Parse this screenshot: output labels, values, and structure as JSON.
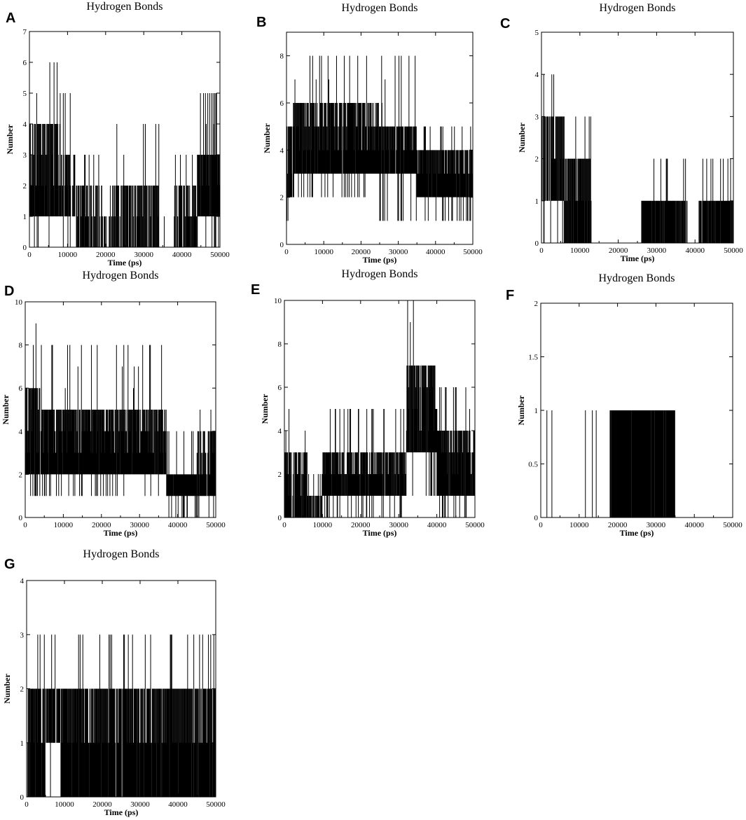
{
  "figure": {
    "panels": [
      "A",
      "B",
      "C",
      "D",
      "E",
      "F",
      "G"
    ]
  },
  "chart_data": [
    {
      "panel": "A",
      "type": "line",
      "title": "Hydrogen Bonds",
      "xlabel": "Time (ps)",
      "ylabel": "Number",
      "xlim": [
        0,
        50000
      ],
      "ylim": [
        0,
        7
      ],
      "xticks": [
        0,
        10000,
        20000,
        30000,
        40000,
        50000
      ],
      "yticks": [
        0,
        1,
        2,
        3,
        4,
        5,
        6,
        7
      ],
      "grid": false,
      "legend": "none",
      "segments": [
        {
          "x0": 0,
          "x1": 2000,
          "lo": 1,
          "hi": 4,
          "dlo": 0,
          "dhi": 5,
          "density": 0.95
        },
        {
          "x0": 2000,
          "x1": 8000,
          "lo": 1,
          "hi": 4,
          "dlo": 0,
          "dhi": 6,
          "density": 0.9
        },
        {
          "x0": 8000,
          "x1": 12000,
          "lo": 1,
          "hi": 3,
          "dlo": 0,
          "dhi": 5,
          "density": 0.85
        },
        {
          "x0": 12000,
          "x1": 19000,
          "lo": 0,
          "hi": 2,
          "dlo": 0,
          "dhi": 3,
          "density": 0.75
        },
        {
          "x0": 19000,
          "x1": 22000,
          "lo": 0,
          "hi": 1,
          "dlo": 0,
          "dhi": 2,
          "density": 0.5
        },
        {
          "x0": 22000,
          "x1": 34000,
          "lo": 0,
          "hi": 2,
          "dlo": 0,
          "dhi": 4,
          "density": 0.7
        },
        {
          "x0": 34000,
          "x1": 38000,
          "lo": 0,
          "hi": 0,
          "dlo": 0,
          "dhi": 2,
          "density": 0.15
        },
        {
          "x0": 38000,
          "x1": 44000,
          "lo": 0,
          "hi": 2,
          "dlo": 0,
          "dhi": 3,
          "density": 0.7
        },
        {
          "x0": 44000,
          "x1": 50000,
          "lo": 1,
          "hi": 3,
          "dlo": 0,
          "dhi": 5,
          "density": 0.85
        }
      ]
    },
    {
      "panel": "B",
      "type": "line",
      "title": "Hydrogen Bonds",
      "xlabel": "Time (ps)",
      "ylabel": "Number",
      "xlim": [
        0,
        50000
      ],
      "ylim": [
        0,
        9
      ],
      "xticks": [
        0,
        10000,
        20000,
        30000,
        40000,
        50000
      ],
      "yticks": [
        0,
        2,
        4,
        6,
        8
      ],
      "grid": false,
      "legend": "none",
      "segments": [
        {
          "x0": 0,
          "x1": 2000,
          "lo": 2,
          "hi": 5,
          "dlo": 1,
          "dhi": 6,
          "density": 0.9
        },
        {
          "x0": 2000,
          "x1": 25000,
          "lo": 3,
          "hi": 6,
          "dlo": 2,
          "dhi": 8,
          "density": 0.95
        },
        {
          "x0": 25000,
          "x1": 35000,
          "lo": 3,
          "hi": 5,
          "dlo": 1,
          "dhi": 8,
          "density": 0.95
        },
        {
          "x0": 35000,
          "x1": 50000,
          "lo": 2,
          "hi": 4,
          "dlo": 1,
          "dhi": 5,
          "density": 0.95
        }
      ]
    },
    {
      "panel": "C",
      "type": "line",
      "title": "Hydrogen Bonds",
      "xlabel": "Time (ps)",
      "ylabel": "Number",
      "xlim": [
        0,
        50000
      ],
      "ylim": [
        0,
        5
      ],
      "xticks": [
        0,
        10000,
        20000,
        30000,
        40000,
        50000
      ],
      "yticks": [
        0,
        1,
        2,
        3,
        4,
        5
      ],
      "grid": false,
      "legend": "none",
      "segments": [
        {
          "x0": 0,
          "x1": 6000,
          "lo": 1,
          "hi": 3,
          "dlo": 0,
          "dhi": 4,
          "density": 0.9
        },
        {
          "x0": 6000,
          "x1": 13000,
          "lo": 0,
          "hi": 2,
          "dlo": 0,
          "dhi": 3,
          "density": 0.85
        },
        {
          "x0": 13000,
          "x1": 26000,
          "lo": 0,
          "hi": 0,
          "dlo": 0,
          "dhi": 0,
          "density": 0.0
        },
        {
          "x0": 26000,
          "x1": 38000,
          "lo": 0,
          "hi": 1,
          "dlo": 0,
          "dhi": 2,
          "density": 0.9
        },
        {
          "x0": 38000,
          "x1": 41000,
          "lo": 0,
          "hi": 0,
          "dlo": 0,
          "dhi": 0,
          "density": 0.0
        },
        {
          "x0": 41000,
          "x1": 50000,
          "lo": 0,
          "hi": 1,
          "dlo": 0,
          "dhi": 2,
          "density": 0.85
        }
      ]
    },
    {
      "panel": "D",
      "type": "line",
      "title": "Hydrogen Bonds",
      "xlabel": "Time (ps)",
      "ylabel": "Number",
      "xlim": [
        0,
        50000
      ],
      "ylim": [
        0,
        10
      ],
      "xticks": [
        0,
        10000,
        20000,
        30000,
        40000,
        50000
      ],
      "yticks": [
        0,
        2,
        4,
        6,
        8,
        10
      ],
      "grid": false,
      "legend": "none",
      "segments": [
        {
          "x0": 0,
          "x1": 4000,
          "lo": 2,
          "hi": 6,
          "dlo": 1,
          "dhi": 9,
          "density": 0.95
        },
        {
          "x0": 4000,
          "x1": 37000,
          "lo": 2,
          "hi": 5,
          "dlo": 1,
          "dhi": 8,
          "density": 0.95
        },
        {
          "x0": 37000,
          "x1": 45000,
          "lo": 1,
          "hi": 2,
          "dlo": 0,
          "dhi": 4,
          "density": 0.95
        },
        {
          "x0": 45000,
          "x1": 50000,
          "lo": 1,
          "hi": 4,
          "dlo": 0,
          "dhi": 5,
          "density": 0.9
        }
      ]
    },
    {
      "panel": "E",
      "type": "line",
      "title": "Hydrogen Bonds",
      "xlabel": "Time (ps)",
      "ylabel": "Number",
      "xlim": [
        0,
        50000
      ],
      "ylim": [
        0,
        10
      ],
      "xticks": [
        0,
        10000,
        20000,
        30000,
        40000,
        50000
      ],
      "yticks": [
        0,
        2,
        4,
        6,
        8,
        10
      ],
      "grid": false,
      "legend": "none",
      "segments": [
        {
          "x0": 0,
          "x1": 6000,
          "lo": 0,
          "hi": 3,
          "dlo": 0,
          "dhi": 5,
          "density": 0.9
        },
        {
          "x0": 6000,
          "x1": 10000,
          "lo": 0,
          "hi": 1,
          "dlo": 0,
          "dhi": 2,
          "density": 0.6
        },
        {
          "x0": 10000,
          "x1": 32000,
          "lo": 1,
          "hi": 3,
          "dlo": 0,
          "dhi": 5,
          "density": 0.9
        },
        {
          "x0": 32000,
          "x1": 40000,
          "lo": 3,
          "hi": 7,
          "dlo": 1,
          "dhi": 10,
          "density": 0.95
        },
        {
          "x0": 40000,
          "x1": 50000,
          "lo": 1,
          "hi": 4,
          "dlo": 0,
          "dhi": 6,
          "density": 0.9
        }
      ]
    },
    {
      "panel": "F",
      "type": "line",
      "title": "Hydrogen Bonds",
      "xlabel": "Time (ps)",
      "ylabel": "Number",
      "xlim": [
        0,
        50000
      ],
      "ylim": [
        0,
        2
      ],
      "xticks": [
        0,
        10000,
        20000,
        30000,
        40000,
        50000
      ],
      "yticks": [
        0,
        0.5,
        1,
        1.5,
        2
      ],
      "grid": false,
      "legend": "none",
      "segments": [
        {
          "x0": 0,
          "x1": 18000,
          "lo": 0,
          "hi": 0,
          "dlo": 0,
          "dhi": 1,
          "density": 0.12
        },
        {
          "x0": 18000,
          "x1": 35000,
          "lo": 0,
          "hi": 1,
          "dlo": 0,
          "dhi": 1,
          "density": 0.98
        },
        {
          "x0": 35000,
          "x1": 50000,
          "lo": 0,
          "hi": 0,
          "dlo": 0,
          "dhi": 1,
          "density": 0.05
        }
      ]
    },
    {
      "panel": "G",
      "type": "line",
      "title": "Hydrogen Bonds",
      "xlabel": "Time (ps)",
      "ylabel": "Number",
      "xlim": [
        0,
        50000
      ],
      "ylim": [
        0,
        4
      ],
      "xticks": [
        0,
        10000,
        20000,
        30000,
        40000,
        50000
      ],
      "yticks": [
        0,
        1,
        2,
        3,
        4
      ],
      "grid": false,
      "legend": "none",
      "segments": [
        {
          "x0": 0,
          "x1": 5000,
          "lo": 0,
          "hi": 2,
          "dlo": 0,
          "dhi": 3,
          "density": 0.9
        },
        {
          "x0": 5000,
          "x1": 9000,
          "lo": 1,
          "hi": 2,
          "dlo": 0,
          "dhi": 3,
          "density": 0.7
        },
        {
          "x0": 9000,
          "x1": 50000,
          "lo": 0,
          "hi": 2,
          "dlo": 0,
          "dhi": 3,
          "density": 0.95
        }
      ]
    }
  ]
}
